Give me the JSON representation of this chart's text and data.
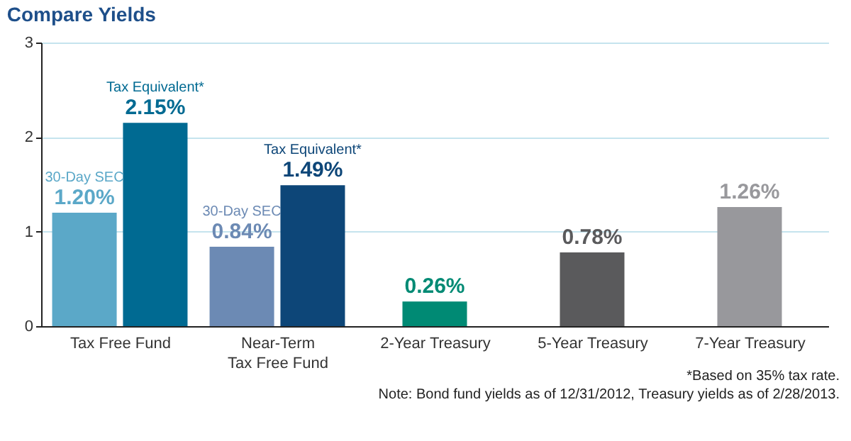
{
  "chart_data": {
    "type": "bar",
    "title": "Compare Yields",
    "categories": [
      "Tax Free Fund",
      "Near-Term Tax Free Fund",
      "2-Year Treasury",
      "5-Year Treasury",
      "7-Year Treasury"
    ],
    "series": [
      {
        "name": "30-Day SEC",
        "colors": [
          "#5ba8c8",
          "#6c8ab4",
          null,
          null,
          null
        ],
        "values": [
          1.2,
          0.84,
          null,
          null,
          null
        ],
        "value_labels": [
          "1.20%",
          "0.84%",
          null,
          null,
          null
        ]
      },
      {
        "name": "Tax Equivalent*",
        "colors": [
          "#006a92",
          "#0d4678",
          null,
          null,
          null
        ],
        "values": [
          2.15,
          1.49,
          null,
          null,
          null
        ],
        "value_labels": [
          "2.15%",
          "1.49%",
          null,
          null,
          null
        ]
      },
      {
        "colors": [
          null,
          null,
          "#008a74",
          "#5a5a5c",
          "#98989c"
        ],
        "values": [
          null,
          null,
          0.26,
          0.78,
          1.26
        ],
        "value_labels": [
          null,
          null,
          "0.26%",
          "0.78%",
          "1.26%"
        ]
      }
    ],
    "ylim": [
      0,
      3
    ],
    "yticks": [
      0,
      1,
      2,
      3
    ],
    "grid": "y",
    "annotations": [
      "*Based on 35% tax rate.",
      "Note: Bond fund yields as of 12/31/2012, Treasury yields as of 2/28/2013."
    ]
  }
}
